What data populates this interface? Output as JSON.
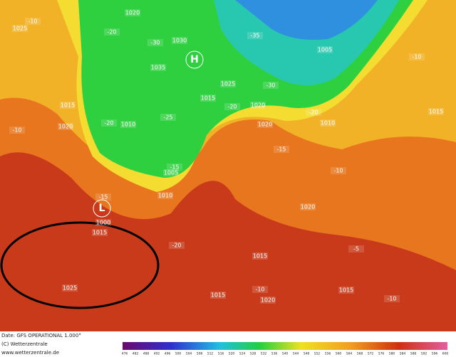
{
  "map": {
    "pressure_labels": [
      "1025",
      "1020",
      "1030",
      "1035",
      "1025",
      "1015",
      "1020",
      "1005",
      "1015",
      "1020",
      "1010",
      "1005",
      "1010",
      "1000",
      "1015",
      "1020",
      "1020",
      "1015",
      "1015",
      "1020",
      "1015",
      "1025",
      "1015",
      "1010"
    ],
    "temperature_labels": [
      "-10",
      "-20",
      "-30",
      "-35",
      "-30",
      "-25",
      "-20",
      "-20",
      "-20",
      "-15",
      "-15",
      "-15",
      "-10",
      "-10",
      "-10",
      "-5",
      "-10",
      "-10",
      "-20"
    ],
    "centers": [
      "H",
      "L"
    ],
    "footer": [
      "Date: GFS OPERATIONAL 1.000°",
      "(C) Wetterzentrale",
      "www.wetterzentrale.de"
    ],
    "scale_labels": [
      "476",
      "482",
      "488",
      "492",
      "496",
      "500",
      "504",
      "508",
      "512",
      "516",
      "520",
      "524",
      "528",
      "532",
      "536",
      "540",
      "544",
      "548",
      "552",
      "556",
      "560",
      "564",
      "568",
      "572",
      "576",
      "580",
      "584",
      "588",
      "592",
      "596",
      "600"
    ]
  }
}
